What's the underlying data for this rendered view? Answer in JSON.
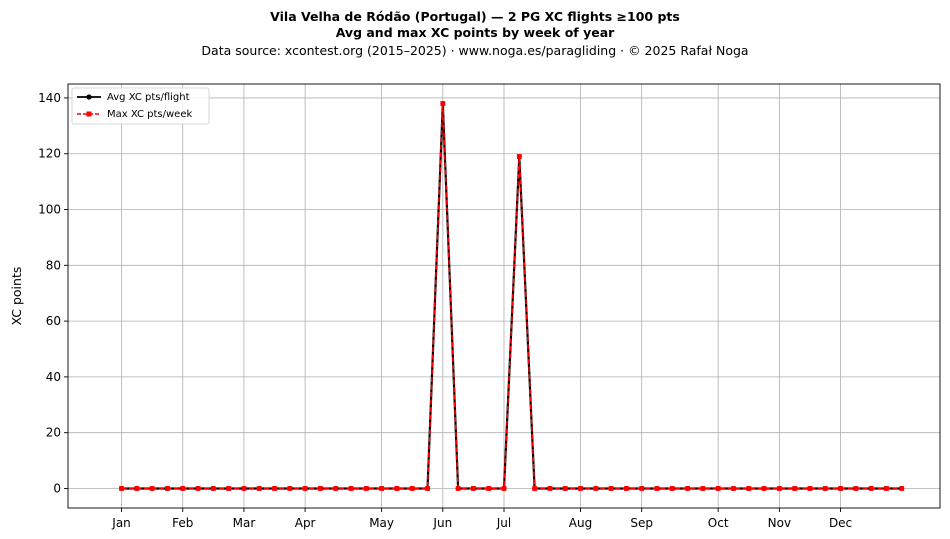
{
  "chart_data": {
    "type": "line",
    "title": "Vila Velha de Ródão (Portugal)  —  2 PG XC flights ≥100 pts",
    "subtitle": "Avg and max XC points by week of year",
    "source_note": "Data source: xcontest.org (2015–2025)  ·  www.noga.es/paragliding  ·  © 2025 Rafał Noga",
    "xlabel": "",
    "ylabel": "XC points",
    "xlim": [
      -2.5,
      54.5
    ],
    "ylim": [
      -7,
      145
    ],
    "yticks": [
      0,
      20,
      40,
      60,
      80,
      100,
      120,
      140
    ],
    "month_ticks": [
      {
        "label": "Jan",
        "week": 1
      },
      {
        "label": "Feb",
        "week": 5
      },
      {
        "label": "Mar",
        "week": 9
      },
      {
        "label": "Apr",
        "week": 13
      },
      {
        "label": "May",
        "week": 18
      },
      {
        "label": "Jun",
        "week": 22
      },
      {
        "label": "Jul",
        "week": 26
      },
      {
        "label": "Aug",
        "week": 31
      },
      {
        "label": "Sep",
        "week": 35
      },
      {
        "label": "Oct",
        "week": 40
      },
      {
        "label": "Nov",
        "week": 44
      },
      {
        "label": "Dec",
        "week": 48
      }
    ],
    "x": [
      1,
      2,
      3,
      4,
      5,
      6,
      7,
      8,
      9,
      10,
      11,
      12,
      13,
      14,
      15,
      16,
      17,
      18,
      19,
      20,
      21,
      22,
      23,
      24,
      25,
      26,
      27,
      28,
      29,
      30,
      31,
      32,
      33,
      34,
      35,
      36,
      37,
      38,
      39,
      40,
      41,
      42,
      43,
      44,
      45,
      46,
      47,
      48,
      49,
      50,
      51,
      52
    ],
    "grid": true,
    "legend_position": "upper-left",
    "series": [
      {
        "name": "Avg XC pts/flight",
        "color": "#000000",
        "linestyle": "solid",
        "marker": "circle",
        "values": [
          0,
          0,
          0,
          0,
          0,
          0,
          0,
          0,
          0,
          0,
          0,
          0,
          0,
          0,
          0,
          0,
          0,
          0,
          0,
          0,
          0,
          138,
          0,
          0,
          0,
          0,
          119,
          0,
          0,
          0,
          0,
          0,
          0,
          0,
          0,
          0,
          0,
          0,
          0,
          0,
          0,
          0,
          0,
          0,
          0,
          0,
          0,
          0,
          0,
          0,
          0,
          0
        ]
      },
      {
        "name": "Max XC pts/week",
        "color": "#ff0000",
        "linestyle": "dashed",
        "marker": "square",
        "values": [
          0,
          0,
          0,
          0,
          0,
          0,
          0,
          0,
          0,
          0,
          0,
          0,
          0,
          0,
          0,
          0,
          0,
          0,
          0,
          0,
          0,
          138,
          0,
          0,
          0,
          0,
          119,
          0,
          0,
          0,
          0,
          0,
          0,
          0,
          0,
          0,
          0,
          0,
          0,
          0,
          0,
          0,
          0,
          0,
          0,
          0,
          0,
          0,
          0,
          0,
          0,
          0
        ]
      }
    ]
  }
}
